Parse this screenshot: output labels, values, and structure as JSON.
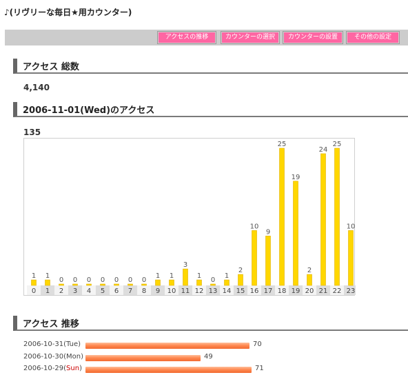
{
  "site": {
    "title": "♪(リヴリーな毎日★用カウンター)"
  },
  "menu": {
    "items": [
      {
        "label": "アクセスの推移"
      },
      {
        "label": "カウンターの選択"
      },
      {
        "label": "カウンターの設置"
      },
      {
        "label": "その他の設定"
      }
    ]
  },
  "total": {
    "heading": "アクセス 総数",
    "value": "4,140"
  },
  "daily": {
    "heading": "2006-11-01(Wed)のアクセス",
    "value": "135"
  },
  "trend": {
    "heading": "アクセス 推移",
    "rows": [
      {
        "date": "2006-10-31",
        "day": "Tue",
        "value": 70
      },
      {
        "date": "2006-10-30",
        "day": "Mon",
        "value": 49
      },
      {
        "date": "2006-10-29",
        "day": "Sun",
        "value": 71
      }
    ]
  },
  "colors": {
    "menu_button": "#ff66a3",
    "bar": "#ffd700",
    "trend_bar": "#f26a30",
    "sunday": "#cc0000"
  },
  "chart_data": {
    "type": "bar",
    "categories": [
      "0",
      "1",
      "2",
      "3",
      "4",
      "5",
      "6",
      "7",
      "8",
      "9",
      "10",
      "11",
      "12",
      "13",
      "14",
      "15",
      "16",
      "17",
      "18",
      "19",
      "20",
      "21",
      "22",
      "23"
    ],
    "values": [
      1,
      1,
      0,
      0,
      0,
      0,
      0,
      0,
      0,
      1,
      1,
      3,
      1,
      0,
      1,
      2,
      10,
      9,
      25,
      19,
      2,
      24,
      25,
      10
    ],
    "ylim": [
      0,
      25
    ]
  }
}
